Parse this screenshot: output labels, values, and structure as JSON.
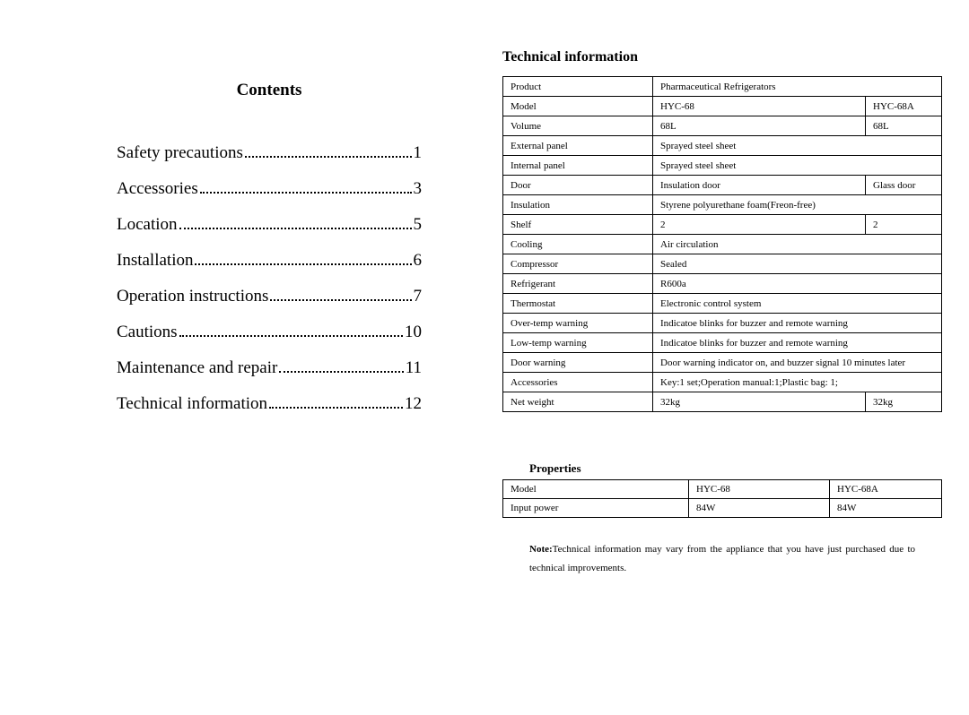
{
  "contents": {
    "title": "Contents",
    "items": [
      {
        "label": "Safety precautions",
        "page": "1"
      },
      {
        "label": "Accessories",
        "page": "3"
      },
      {
        "label": "Location",
        "page": "5"
      },
      {
        "label": "Installation",
        "page": "6"
      },
      {
        "label": "Operation instructions",
        "page": "7"
      },
      {
        "label": "Cautions",
        "page": "10"
      },
      {
        "label": "Maintenance and repair",
        "page": "11"
      },
      {
        "label": "Technical information",
        "page": "12"
      }
    ]
  },
  "technical": {
    "title": "Technical information",
    "rows": [
      {
        "label": "Product",
        "v1": "Pharmaceutical Refrigerators",
        "span": true
      },
      {
        "label": "Model",
        "v1": "HYC-68",
        "v2": "HYC-68A"
      },
      {
        "label": "Volume",
        "v1": "68L",
        "v2": "68L"
      },
      {
        "label": "External panel",
        "v1": "Sprayed steel sheet",
        "span": true
      },
      {
        "label": "Internal panel",
        "v1": "Sprayed steel sheet",
        "span": true
      },
      {
        "label": "Door",
        "v1": "Insulation door",
        "v2": "Glass door"
      },
      {
        "label": "Insulation",
        "v1": "Styrene polyurethane foam(Freon-free)",
        "span": true
      },
      {
        "label": "Shelf",
        "v1": "2",
        "v2": "2"
      },
      {
        "label": "Cooling",
        "v1": "Air circulation",
        "span": true
      },
      {
        "label": "Compressor",
        "v1": "Sealed",
        "span": true
      },
      {
        "label": "Refrigerant",
        "v1": "R600a",
        "span": true
      },
      {
        "label": "Thermostat",
        "v1": "Electronic control system",
        "span": true
      },
      {
        "label": "Over-temp warning",
        "v1": "Indicatoe blinks for buzzer and remote warning",
        "span": true
      },
      {
        "label": "Low-temp warning",
        "v1": "Indicatoe blinks for buzzer and remote warning",
        "span": true
      },
      {
        "label": "Door warning",
        "v1": "Door warning indicator on, and buzzer signal 10 minutes later",
        "span": true
      },
      {
        "label": "Accessories",
        "v1": "Key:1 set;Operation manual:1;Plastic bag: 1;",
        "span": true
      },
      {
        "label": "Net weight",
        "v1": "32kg",
        "v2": "32kg"
      }
    ]
  },
  "properties": {
    "title": "Properties",
    "rows": [
      {
        "label": "Model",
        "v1": "HYC-68",
        "v2": "HYC-68A"
      },
      {
        "label": "Input power",
        "v1": "84W",
        "v2": "84W"
      }
    ]
  },
  "note": {
    "label": "Note:",
    "text": "Technical information may vary from the appliance that you have just purchased due to technical improvements."
  }
}
